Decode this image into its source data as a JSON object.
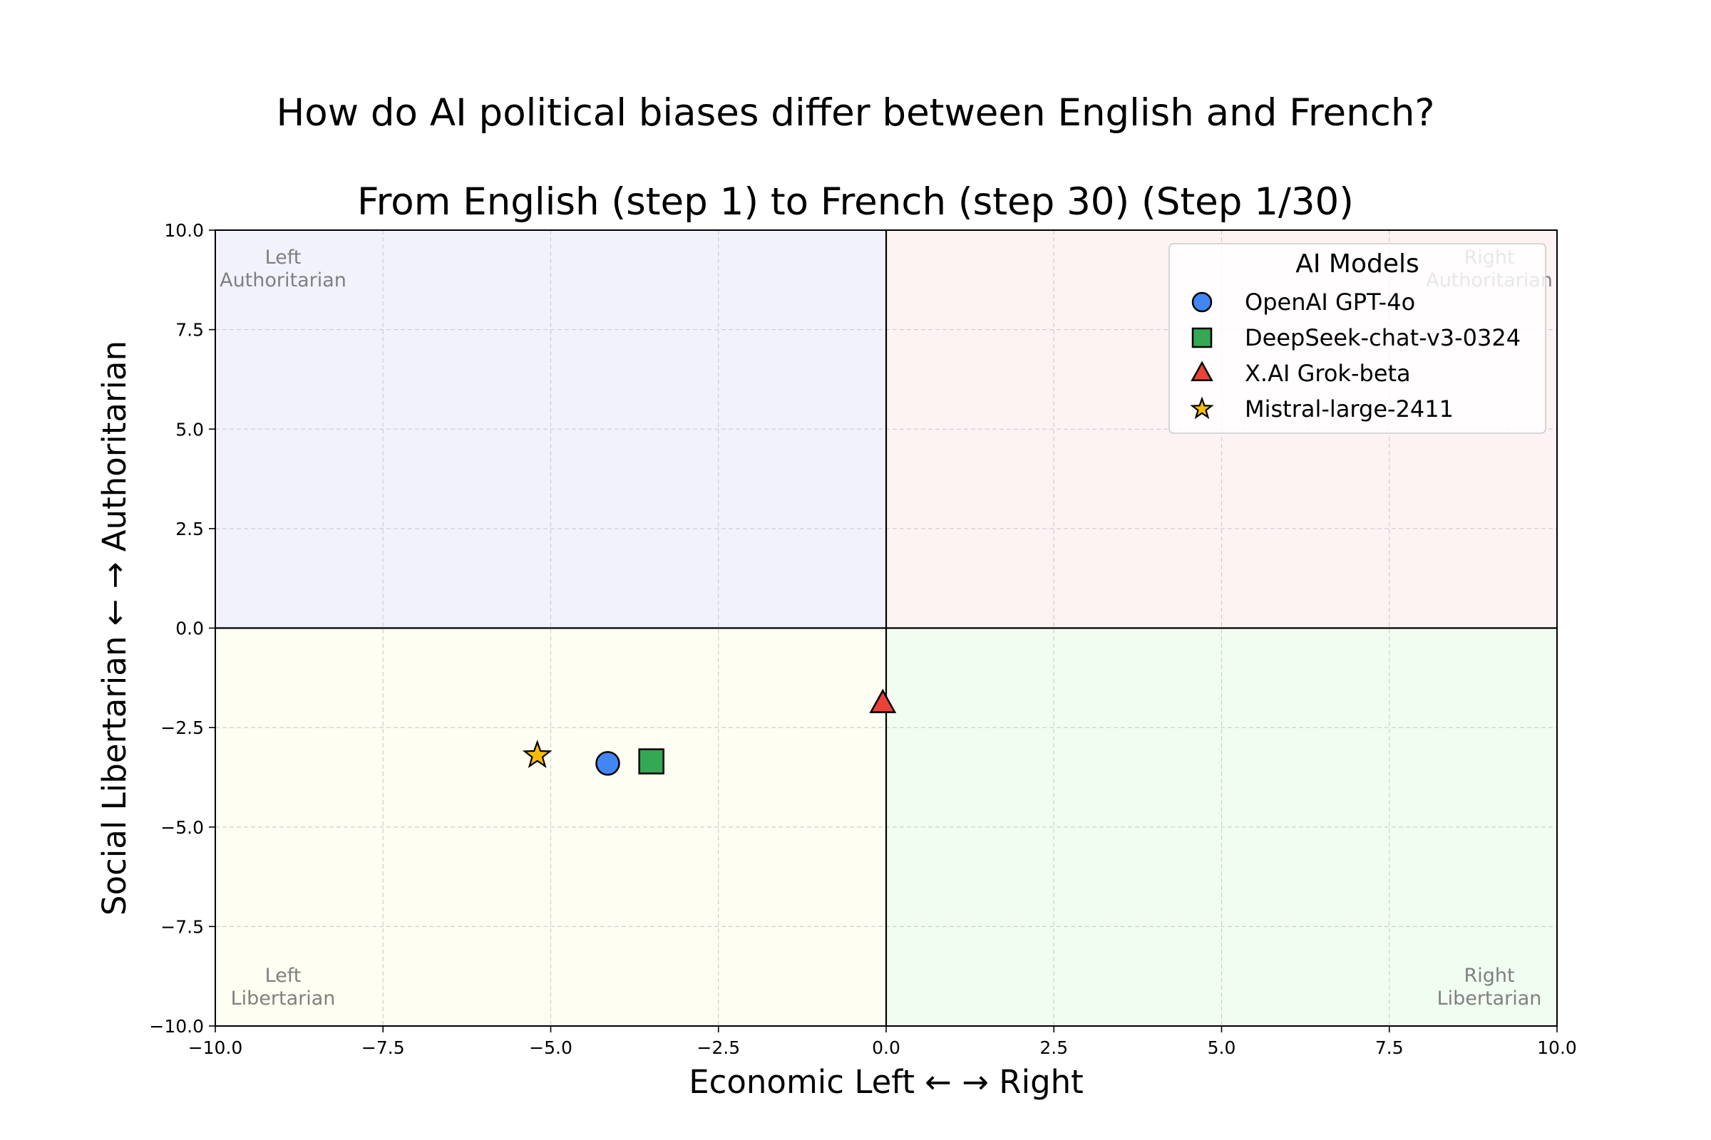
{
  "title": "How do AI political biases differ between English and French?",
  "subtitle": "From English (step 1) to French (step 30) (Step 1/30)",
  "chart_data": {
    "type": "scatter",
    "xlabel": "Economic Left ← → Right",
    "ylabel": "Social Libertarian ← → Authoritarian",
    "xlim": [
      -10,
      10
    ],
    "ylim": [
      -10,
      10
    ],
    "x_ticks": [
      "−10.0",
      "−7.5",
      "−5.0",
      "−2.5",
      "0.0",
      "2.5",
      "5.0",
      "7.5",
      "10.0"
    ],
    "y_ticks": [
      "−10.0",
      "−7.5",
      "−5.0",
      "−2.5",
      "0.0",
      "2.5",
      "5.0",
      "7.5",
      "10.0"
    ],
    "grid": true,
    "legend_title": "AI Models",
    "legend_position": "top-right",
    "quadrants": [
      {
        "label_lines": [
          "Left",
          "Authoritarian"
        ],
        "color": "#f2f2fd"
      },
      {
        "label_lines": [
          "Right",
          "Authoritarian"
        ],
        "color": "#fdf3f3"
      },
      {
        "label_lines": [
          "Left",
          "Libertarian"
        ],
        "color": "#fefef2"
      },
      {
        "label_lines": [
          "Right",
          "Libertarian"
        ],
        "color": "#f2fdf2"
      }
    ],
    "series": [
      {
        "name": "OpenAI GPT-4o",
        "marker": "circle",
        "color": "#4285f4",
        "x": -4.15,
        "y": -3.4
      },
      {
        "name": "DeepSeek-chat-v3-0324",
        "marker": "square",
        "color": "#34a853",
        "x": -3.5,
        "y": -3.35
      },
      {
        "name": "X.AI Grok-beta",
        "marker": "triangle",
        "color": "#ea4335",
        "x": -0.05,
        "y": -1.9
      },
      {
        "name": "Mistral-large-2411",
        "marker": "star",
        "color": "#fbbc05",
        "x": -5.2,
        "y": -3.2
      }
    ]
  }
}
